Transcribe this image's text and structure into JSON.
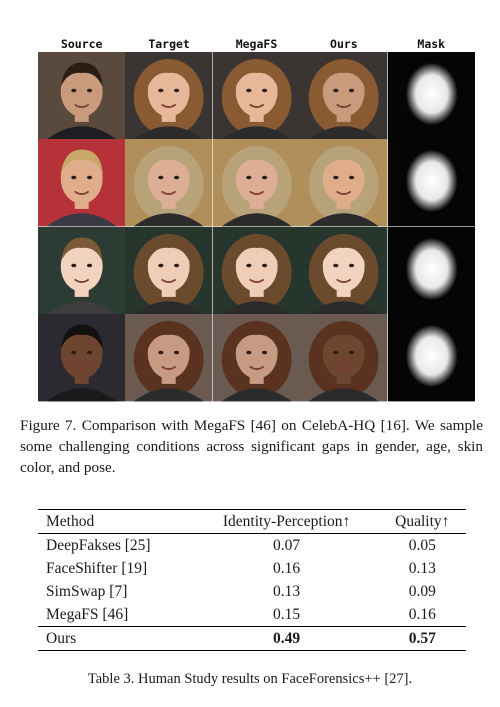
{
  "figure": {
    "columns": [
      "Source",
      "Target",
      "MegaFS",
      "Ours",
      "Mask"
    ],
    "rows": [
      {
        "skin": "#c99a7b",
        "hair": "#2b1d14",
        "bg": "#5a4a3e",
        "coat": "#1d1d22"
      },
      {
        "skin": "#e0ad8a",
        "hair": "#c7a86a",
        "bg": "#b53238",
        "coat": "#3a3a46"
      },
      {
        "skin": "#f1d3bf",
        "hair": "#7b5a3a",
        "bg": "#2c3b33",
        "coat": "#3d3d3d"
      },
      {
        "skin": "#6e4630",
        "hair": "#141010",
        "bg": "#2a2a30",
        "coat": "#1a1a1a"
      }
    ],
    "caption": {
      "label": "Figure 7.",
      "text": "Comparison with MegaFS [46] on CelebA-HQ [16]. We sample some challenging conditions across significant gaps in gender, age, skin color, and pose."
    }
  },
  "table": {
    "headers": [
      "Method",
      "Identity-Perception↑",
      "Quality↑"
    ],
    "rows": [
      {
        "method": "DeepFakses [25]",
        "identity": "0.07",
        "quality": "0.05"
      },
      {
        "method": "FaceShifter [19]",
        "identity": "0.16",
        "quality": "0.13"
      },
      {
        "method": "SimSwap [7]",
        "identity": "0.13",
        "quality": "0.09"
      },
      {
        "method": "MegaFS [46]",
        "identity": "0.15",
        "quality": "0.16"
      }
    ],
    "ours": {
      "method": "Ours",
      "identity": "0.49",
      "quality": "0.57"
    },
    "caption": "Table 3. Human Study results on FaceForensics++ [27]."
  }
}
